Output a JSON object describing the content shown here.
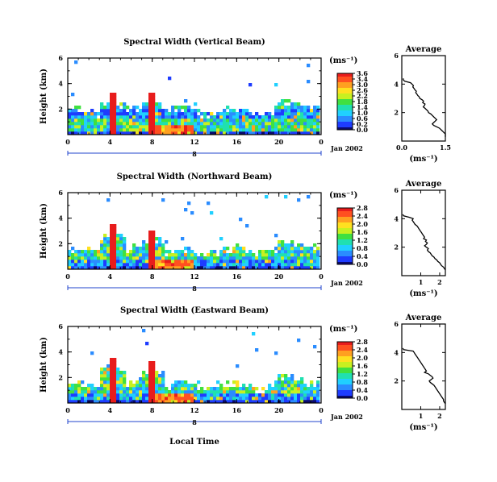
{
  "colors": {
    "colormap": [
      "#0a0a6e",
      "#1e3cff",
      "#2a8cff",
      "#20d0ff",
      "#20e0b0",
      "#40e040",
      "#c8f020",
      "#ffe020",
      "#ffa020",
      "#ff5020",
      "#e81c1c"
    ],
    "profile_line": "#000000",
    "axis_line": "#000000"
  },
  "chart_data": [
    {
      "type": "heatmap",
      "title": "Spectral Width (Vertical Beam)",
      "ylabel": "Height (km)",
      "x_ticks": [
        "0",
        "4",
        "8",
        "12",
        "16",
        "20",
        "0"
      ],
      "date_tick": "8",
      "date_label": "Jan 2002",
      "y_ticks": [
        "6",
        "4",
        "2"
      ],
      "xlim": [
        0,
        24
      ],
      "ylim": [
        0,
        6
      ],
      "unit": "(ms⁻¹)",
      "colorbar_ticks": [
        "3.6",
        "3.4",
        "3.0",
        "2.6",
        "2.2",
        "1.8",
        "1.4",
        "1.0",
        "0.6",
        "0.2",
        "0.0"
      ],
      "colorbar_ticks_note_values": [
        3.6,
        3.4,
        3.0,
        2.6,
        2.2,
        1.8,
        1.4,
        1.0,
        0.6,
        0.2,
        0.0
      ],
      "vlim": [
        0,
        3.6
      ],
      "features": {
        "base_top_km": 2.0,
        "high_band_km": [
          1.3,
          2.0
        ],
        "plumes_hour": [
          4.2,
          8.0
        ],
        "plume_top_km": [
          3.3,
          3.2
        ],
        "sparse_top_km": 6.0
      }
    },
    {
      "type": "line",
      "title": "Average",
      "xlabel": "(ms⁻¹)",
      "x_ticks": [
        "0.0",
        "1.5"
      ],
      "xlim": [
        0,
        1.5
      ],
      "y_ticks": [
        "6",
        "4",
        "2"
      ],
      "ylim": [
        0,
        6
      ],
      "profile": {
        "height_km": [
          4.4,
          4.3,
          4.2,
          4.1,
          4.0,
          3.9,
          3.8,
          3.7,
          3.6,
          3.5,
          3.4,
          3.3,
          3.2,
          3.1,
          3.0,
          2.9,
          2.8,
          2.7,
          2.6,
          2.5,
          2.4,
          2.3,
          2.2,
          2.1,
          2.0,
          1.9,
          1.8,
          1.7,
          1.6,
          1.5,
          1.4,
          1.3,
          1.2,
          1.1,
          1.0,
          0.9,
          0.8,
          0.7,
          0.6,
          0.5,
          0.4,
          0.3
        ],
        "width": [
          0.05,
          0.05,
          0.1,
          0.3,
          0.35,
          0.4,
          0.38,
          0.42,
          0.45,
          0.5,
          0.48,
          0.52,
          0.55,
          0.6,
          0.62,
          0.7,
          0.75,
          0.72,
          0.8,
          0.78,
          0.74,
          0.8,
          0.85,
          0.9,
          0.92,
          1.0,
          1.05,
          1.1,
          1.15,
          1.2,
          1.15,
          1.1,
          1.05,
          1.1,
          1.2,
          1.3,
          1.35,
          1.4,
          1.45,
          1.5,
          1.5,
          1.5
        ]
      }
    },
    {
      "type": "heatmap",
      "title": "Spectral Width (Northward Beam)",
      "ylabel": "Height (km)",
      "x_ticks": [
        "0",
        "4",
        "8",
        "12",
        "16",
        "20",
        "0"
      ],
      "date_tick": "8",
      "date_label": "Jan 2002",
      "y_ticks": [
        "6",
        "4",
        "2"
      ],
      "xlim": [
        0,
        24
      ],
      "ylim": [
        0,
        6
      ],
      "unit": "(ms⁻¹)",
      "colorbar_ticks": [
        "2.8",
        "2.4",
        "2.0",
        "1.6",
        "1.2",
        "0.8",
        "0.4",
        "0.0"
      ],
      "vlim": [
        0,
        2.8
      ],
      "features": {
        "base_top_km": 1.6,
        "high_band_km": [
          0.3,
          0.8
        ],
        "plumes_hour": [
          4.2,
          8.0
        ],
        "plume_top_km": [
          3.5,
          3.1
        ],
        "sparse_top_km": 6.0
      }
    },
    {
      "type": "line",
      "title": "Average",
      "xlabel": "(ms⁻¹)",
      "x_ticks": [
        "1",
        "2"
      ],
      "xlim": [
        0,
        2.3
      ],
      "y_ticks": [
        "6",
        "4",
        "2"
      ],
      "ylim": [
        0,
        6
      ],
      "profile": {
        "height_km": [
          4.3,
          4.2,
          4.1,
          4.0,
          3.9,
          3.8,
          3.7,
          3.6,
          3.5,
          3.4,
          3.3,
          3.2,
          3.1,
          3.0,
          2.9,
          2.8,
          2.7,
          2.6,
          2.5,
          2.4,
          2.3,
          2.2,
          2.1,
          2.0,
          1.9,
          1.8,
          1.7,
          1.6,
          1.5,
          1.4,
          1.3,
          1.2,
          1.1,
          1.0,
          0.9,
          0.8,
          0.7,
          0.6,
          0.5,
          0.4
        ],
        "width": [
          0.05,
          0.1,
          0.4,
          0.6,
          0.55,
          0.6,
          0.65,
          0.7,
          0.8,
          0.85,
          0.9,
          0.95,
          1.0,
          1.05,
          1.1,
          1.15,
          1.2,
          1.15,
          1.3,
          1.25,
          1.35,
          1.3,
          1.2,
          1.3,
          1.4,
          1.35,
          1.4,
          1.5,
          1.55,
          1.6,
          1.7,
          1.75,
          1.85,
          1.9,
          2.0,
          2.05,
          2.1,
          2.2,
          2.25,
          2.3
        ]
      }
    },
    {
      "type": "heatmap",
      "title": "Spectral Width (Eastward Beam)",
      "ylabel": "Height (km)",
      "xlabel": "Local Time",
      "x_ticks": [
        "0",
        "4",
        "8",
        "12",
        "16",
        "20",
        "0"
      ],
      "date_tick": "8",
      "date_label": "Jan 2002",
      "y_ticks": [
        "6",
        "4",
        "2"
      ],
      "xlim": [
        0,
        24
      ],
      "ylim": [
        0,
        6
      ],
      "unit": "(ms⁻¹)",
      "colorbar_ticks": [
        "2.8",
        "2.4",
        "2.0",
        "1.6",
        "1.2",
        "0.8",
        "0.4",
        "0.0"
      ],
      "vlim": [
        0,
        2.8
      ],
      "features": {
        "base_top_km": 1.5,
        "high_band_km": [
          0.3,
          0.7
        ],
        "plumes_hour": [
          4.2,
          8.0
        ],
        "plume_top_km": [
          3.6,
          3.3
        ],
        "sparse_top_km": 6.0
      }
    },
    {
      "type": "line",
      "title": "Average",
      "xlabel": "(ms⁻¹)",
      "x_ticks": [
        "1",
        "2"
      ],
      "xlim": [
        0,
        2.3
      ],
      "y_ticks": [
        "6",
        "4",
        "2"
      ],
      "ylim": [
        0,
        6
      ],
      "profile": {
        "height_km": [
          4.3,
          4.2,
          4.1,
          4.0,
          3.9,
          3.8,
          3.7,
          3.6,
          3.5,
          3.4,
          3.3,
          3.2,
          3.1,
          3.0,
          2.9,
          2.8,
          2.7,
          2.6,
          2.5,
          2.4,
          2.3,
          2.2,
          2.1,
          2.0,
          1.9,
          1.8,
          1.7,
          1.6,
          1.5,
          1.4,
          1.3,
          1.2,
          1.1,
          1.0,
          0.9,
          0.8,
          0.7,
          0.6,
          0.5,
          0.4
        ],
        "width": [
          0.05,
          0.1,
          0.6,
          0.65,
          0.7,
          0.75,
          0.8,
          0.85,
          0.9,
          0.95,
          1.0,
          1.05,
          1.1,
          1.15,
          1.2,
          1.25,
          1.3,
          1.2,
          1.4,
          1.5,
          1.6,
          1.65,
          1.55,
          1.45,
          1.5,
          1.6,
          1.7,
          1.75,
          1.8,
          1.85,
          1.9,
          1.95,
          2.0,
          2.05,
          2.1,
          2.15,
          2.2,
          2.2,
          2.25,
          2.3
        ]
      }
    }
  ]
}
